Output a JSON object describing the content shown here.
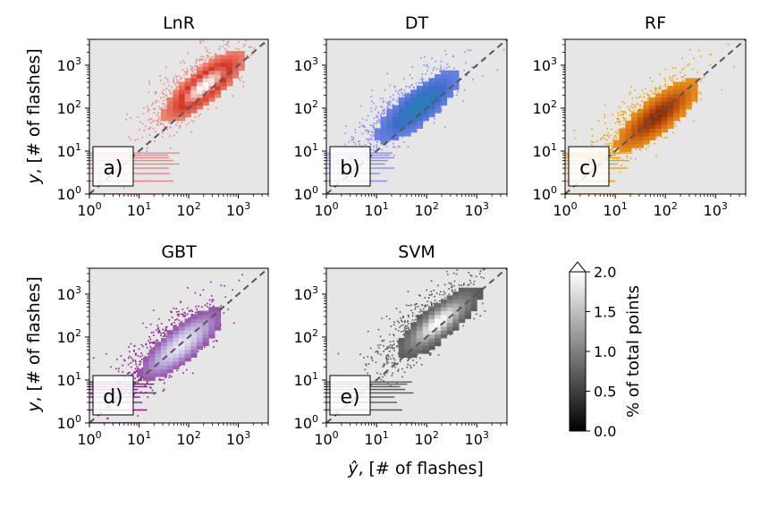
{
  "figure": {
    "xlabel_hat": "ŷ",
    "xlabel_rest": ", [# of flashes]",
    "ylabel_it": "y",
    "ylabel_rest": ", [# of flashes]"
  },
  "colorbar": {
    "label": "% of total points",
    "range": [
      0.0,
      2.0
    ],
    "extend": "max",
    "ticks": [
      "0.0",
      "0.5",
      "1.0",
      "1.5",
      "2.0"
    ],
    "colormap": "gray"
  },
  "chart_data": [
    {
      "type": "heatmap",
      "title": "LnR",
      "panel_label": "a)",
      "scale": "log",
      "xlim": [
        1,
        4000
      ],
      "ylim": [
        1,
        4000
      ],
      "xticks": [
        1,
        10,
        100,
        1000
      ],
      "yticks": [
        1,
        10,
        100,
        1000
      ],
      "tick_labels": {
        "base": "10",
        "exponents": [
          "0",
          "1",
          "2",
          "3"
        ]
      },
      "grid": false,
      "reference_line": "y = ŷ (dashed)",
      "colors": {
        "points": "#f28080",
        "low": "#f6a08c",
        "mid": "#d33020",
        "high": "#ffffff"
      },
      "cloud": {
        "x_range": [
          1,
          1000
        ],
        "y_range": [
          1,
          3000
        ],
        "peak": [
          180,
          300
        ]
      }
    },
    {
      "type": "heatmap",
      "title": "DT",
      "panel_label": "b)",
      "scale": "log",
      "xlim": [
        1,
        4000
      ],
      "ylim": [
        1,
        4000
      ],
      "xticks": [
        1,
        10,
        100,
        1000
      ],
      "yticks": [
        1,
        10,
        100,
        1000
      ],
      "tick_labels": {
        "base": "10",
        "exponents": [
          "0",
          "1",
          "2",
          "3"
        ]
      },
      "grid": false,
      "reference_line": "y = ŷ (dashed)",
      "colors": {
        "points": "#8a8cf0",
        "low": "#7a86e8",
        "mid": "#3a6ec8",
        "high": "#2a7fb8"
      },
      "cloud": {
        "x_range": [
          1,
          3000
        ],
        "y_range": [
          1,
          3000
        ],
        "peak": [
          60,
          100
        ]
      }
    },
    {
      "type": "heatmap",
      "title": "RF",
      "panel_label": "c)",
      "scale": "log",
      "xlim": [
        1,
        4000
      ],
      "ylim": [
        1,
        4000
      ],
      "xticks": [
        1,
        10,
        100,
        1000
      ],
      "yticks": [
        1,
        10,
        100,
        1000
      ],
      "tick_labels": {
        "base": "10",
        "exponents": [
          "0",
          "1",
          "2",
          "3"
        ]
      },
      "grid": false,
      "reference_line": "y = ŷ (dashed)",
      "colors": {
        "points": "#f5a000",
        "low": "#f0a020",
        "mid": "#c85a10",
        "high": "#8a2a08"
      },
      "cloud": {
        "x_range": [
          1,
          1000
        ],
        "y_range": [
          1,
          3000
        ],
        "peak": [
          60,
          60
        ]
      }
    },
    {
      "type": "heatmap",
      "title": "GBT",
      "panel_label": "d)",
      "scale": "log",
      "xlim": [
        1,
        4000
      ],
      "ylim": [
        1,
        4000
      ],
      "xticks": [
        1,
        10,
        100,
        1000
      ],
      "yticks": [
        1,
        10,
        100,
        1000
      ],
      "tick_labels": {
        "base": "10",
        "exponents": [
          "0",
          "1",
          "2",
          "3"
        ]
      },
      "grid": false,
      "reference_line": "y = ŷ (dashed)",
      "colors": {
        "points": "#8c1a8c",
        "low": "#8a3a9a",
        "mid": "#b8a8d8",
        "high": "#e8e4f4"
      },
      "cloud": {
        "x_range": [
          1,
          1000
        ],
        "y_range": [
          1,
          3000
        ],
        "peak": [
          60,
          60
        ]
      }
    },
    {
      "type": "heatmap",
      "title": "SVM",
      "panel_label": "e)",
      "scale": "log",
      "xlim": [
        1,
        4000
      ],
      "ylim": [
        1,
        4000
      ],
      "xticks": [
        1,
        10,
        100,
        1000
      ],
      "yticks": [
        1,
        10,
        100,
        1000
      ],
      "tick_labels": {
        "base": "10",
        "exponents": [
          "0",
          "1",
          "2",
          "3"
        ]
      },
      "grid": false,
      "reference_line": "y = ŷ (dashed)",
      "colors": {
        "points": "#555555",
        "low": "#4a4a4a",
        "mid": "#909090",
        "high": "#ffffff"
      },
      "cloud": {
        "x_range": [
          1,
          1000
        ],
        "y_range": [
          1,
          3000
        ],
        "peak": [
          150,
          200
        ]
      }
    }
  ]
}
